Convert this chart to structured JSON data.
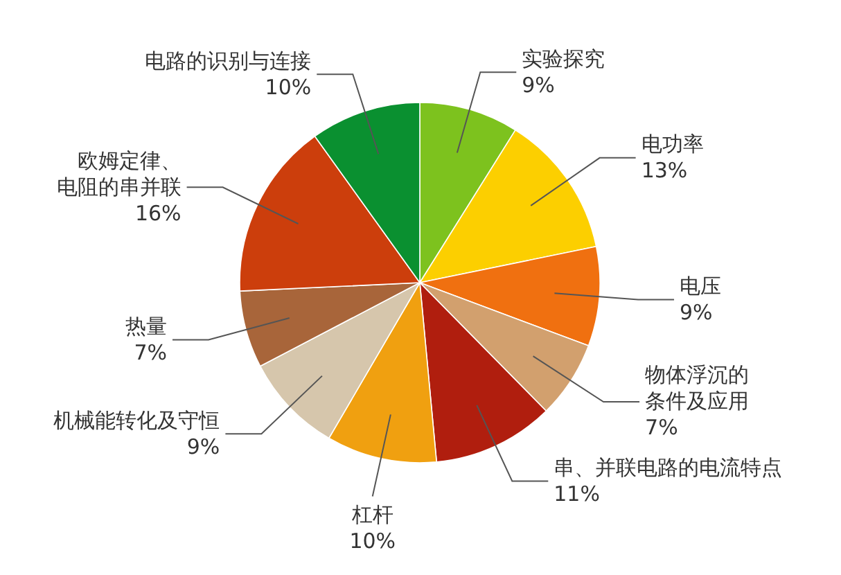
{
  "chart_data": {
    "type": "pie",
    "categories": [
      "实验探究",
      "电功率",
      "电压",
      "物体浮沉的条件及应用",
      "串、并联电路的电流特点",
      "杠杆",
      "机械能转化及守恒",
      "热量",
      "欧姆定律、电阻的串并联",
      "电路的识别与连接"
    ],
    "values": [
      9,
      13,
      9,
      7,
      11,
      10,
      9,
      7,
      16,
      10
    ],
    "colors": [
      "#7dc21e",
      "#fccf00",
      "#f07010",
      "#d2a06e",
      "#b01e0e",
      "#f0a010",
      "#d6c6ac",
      "#a8653a",
      "#cc3e0c",
      "#0a9030"
    ],
    "value_labels": [
      "9%",
      "13%",
      "9%",
      "7%",
      "11%",
      "10%",
      "9%",
      "7%",
      "16%",
      "10%"
    ]
  }
}
